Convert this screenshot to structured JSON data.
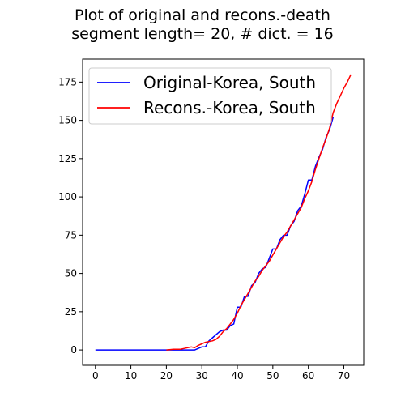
{
  "chart_data": {
    "type": "line",
    "title": "Plot of original and recons.-death",
    "subtitle": "segment length= 20, # dict. = 16",
    "xlabel": "",
    "ylabel": "",
    "xlim": [
      -3.6,
      75.6
    ],
    "ylim": [
      -10,
      190
    ],
    "xticks": [
      0,
      10,
      20,
      30,
      40,
      50,
      60,
      70
    ],
    "yticks": [
      0,
      25,
      50,
      75,
      100,
      125,
      150,
      175
    ],
    "grid": false,
    "legend_position": "top-left",
    "series": [
      {
        "name": "Original-Korea, South",
        "color": "#0000ff",
        "x": [
          0,
          5,
          10,
          15,
          20,
          25,
          28,
          29,
          30,
          31,
          32,
          33,
          34,
          35,
          36,
          37,
          38,
          39,
          40,
          41,
          42,
          43,
          44,
          45,
          46,
          47,
          48,
          49,
          50,
          51,
          52,
          53,
          54,
          55,
          56,
          57,
          58,
          59,
          60,
          61,
          62,
          63,
          64,
          65,
          66,
          67
        ],
        "y": [
          0,
          0,
          0,
          0,
          0,
          0,
          0,
          1,
          2,
          2,
          6,
          8,
          10,
          12,
          13,
          13,
          16,
          17,
          28,
          28,
          35,
          35,
          42,
          44,
          50,
          53,
          54,
          60,
          66,
          66,
          72,
          75,
          75,
          81,
          84,
          91,
          94,
          102,
          111,
          111,
          120,
          126,
          131,
          139,
          144,
          152
        ]
      },
      {
        "name": "Recons.-Korea, South",
        "color": "#ff0000",
        "x": [
          20,
          22,
          24,
          26,
          27,
          28,
          29,
          30,
          31,
          32,
          33,
          34,
          35,
          36,
          37,
          38,
          39,
          40,
          41,
          42,
          43,
          44,
          45,
          46,
          47,
          48,
          49,
          50,
          51,
          52,
          53,
          54,
          55,
          56,
          57,
          58,
          59,
          60,
          61,
          62,
          63,
          64,
          65,
          66,
          67,
          68,
          69,
          70,
          71,
          72
        ],
        "y": [
          0,
          0.5,
          0.5,
          1.5,
          2,
          1.5,
          3,
          4,
          5,
          5.5,
          6,
          7,
          9,
          12,
          14,
          17,
          20,
          24,
          29,
          33,
          37,
          41,
          45,
          48,
          52,
          55,
          58,
          62,
          66,
          70,
          74,
          77,
          81,
          85,
          89,
          93,
          99,
          104,
          110,
          118,
          125,
          132,
          138,
          145,
          155,
          161,
          166,
          171,
          175,
          180
        ]
      }
    ]
  }
}
